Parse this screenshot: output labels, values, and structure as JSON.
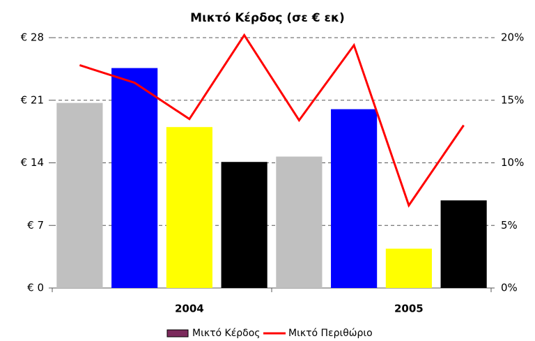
{
  "chart_data": {
    "type": "bar_line",
    "title": "Μικτό Κέρδος (σε € εκ)",
    "categories": [
      null,
      null,
      null,
      null,
      null,
      null,
      null,
      null
    ],
    "group_labels": [
      "2004",
      "2005"
    ],
    "series": [
      {
        "name": "Μικτό Κέρδος",
        "color": "#7b2a5c",
        "colors": [
          "#c0c0c0",
          "#0000ff",
          "#ffff00",
          "#000000",
          "#c0c0c0",
          "#0000ff",
          "#ffff00",
          "#000000"
        ],
        "values": [
          20.7,
          24.6,
          18.0,
          14.1,
          14.7,
          20.0,
          4.4,
          9.8
        ]
      },
      {
        "name": "Μικτό Περιθώριο",
        "color": "#ff0000",
        "axis": "y2",
        "values": [
          17.8,
          16.4,
          13.5,
          20.2,
          13.4,
          19.4,
          6.6,
          13.0
        ]
      }
    ],
    "ylim": [
      0,
      28
    ],
    "yticks": [
      {
        "value": 0,
        "label": "€ 0"
      },
      {
        "value": 7,
        "label": "€ 7"
      },
      {
        "value": 14,
        "label": "€ 14"
      },
      {
        "value": 21,
        "label": "€ 21"
      },
      {
        "value": 28,
        "label": "€ 28"
      }
    ],
    "y2lim": [
      0,
      20
    ],
    "y2ticks": [
      {
        "value": 0,
        "label": "0%"
      },
      {
        "value": 5,
        "label": "5%"
      },
      {
        "value": 10,
        "label": "10%"
      },
      {
        "value": 15,
        "label": "15%"
      },
      {
        "value": 20,
        "label": "20%"
      }
    ],
    "grid": true,
    "legend": "bottom"
  }
}
